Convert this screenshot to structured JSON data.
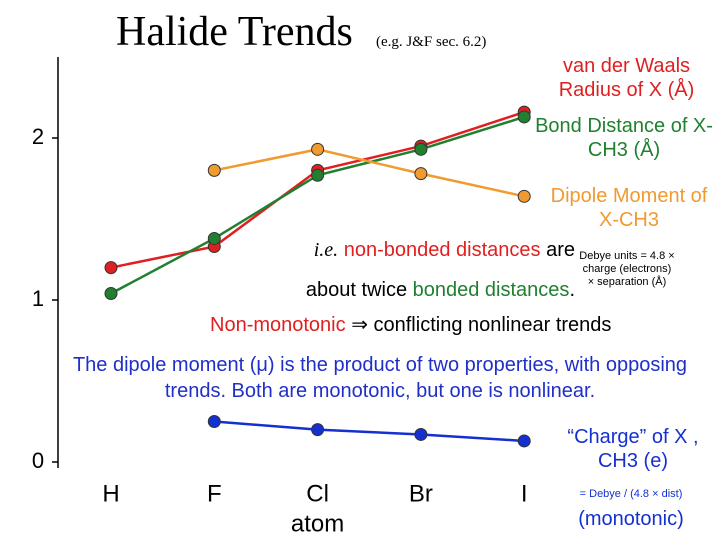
{
  "chart_data": {
    "type": "line",
    "title": "Halide Trends",
    "subtitle": "(e.g. J&F sec. 6.2)",
    "xlabel": "atom",
    "categories": [
      "H",
      "F",
      "Cl",
      "Br",
      "I"
    ],
    "ylim": [
      0,
      2.5
    ],
    "yticks": [
      0,
      1,
      2
    ],
    "grid": false,
    "series": [
      {
        "name": "van der Waals Radius of X (Å)",
        "color": "#e02020",
        "values": [
          1.2,
          1.33,
          1.8,
          1.95,
          2.16
        ]
      },
      {
        "name": "Bond Distance of X-CH3 (Å)",
        "color": "#208030",
        "values": [
          1.04,
          1.38,
          1.77,
          1.93,
          2.13
        ]
      },
      {
        "name": "Dipole Moment of X-CH3",
        "color": "#f09a30",
        "values": [
          null,
          1.8,
          1.93,
          1.78,
          1.64
        ],
        "notes": [
          "Debye units = 4.8 ×",
          "charge (electrons)",
          "× separation (Å)"
        ]
      },
      {
        "name": "“Charge” of X , CH3 (e)",
        "color": "#1530d0",
        "values": [
          null,
          0.25,
          0.2,
          0.17,
          0.13
        ],
        "notes": [
          "= Debye / (4.8 × dist)",
          "(monotonic)"
        ]
      }
    ],
    "annotations": {
      "distances": [
        "i.e.",
        "non-bonded distances",
        "are",
        "about twice",
        "bonded distances",
        "."
      ],
      "trends": [
        "Non-monotonic",
        "⇒ conflicting nonlinear trends"
      ],
      "dipole": "The dipole moment (μ) is the product of two properties, with opposing trends. Both are monotonic, but one is nonlinear."
    }
  }
}
